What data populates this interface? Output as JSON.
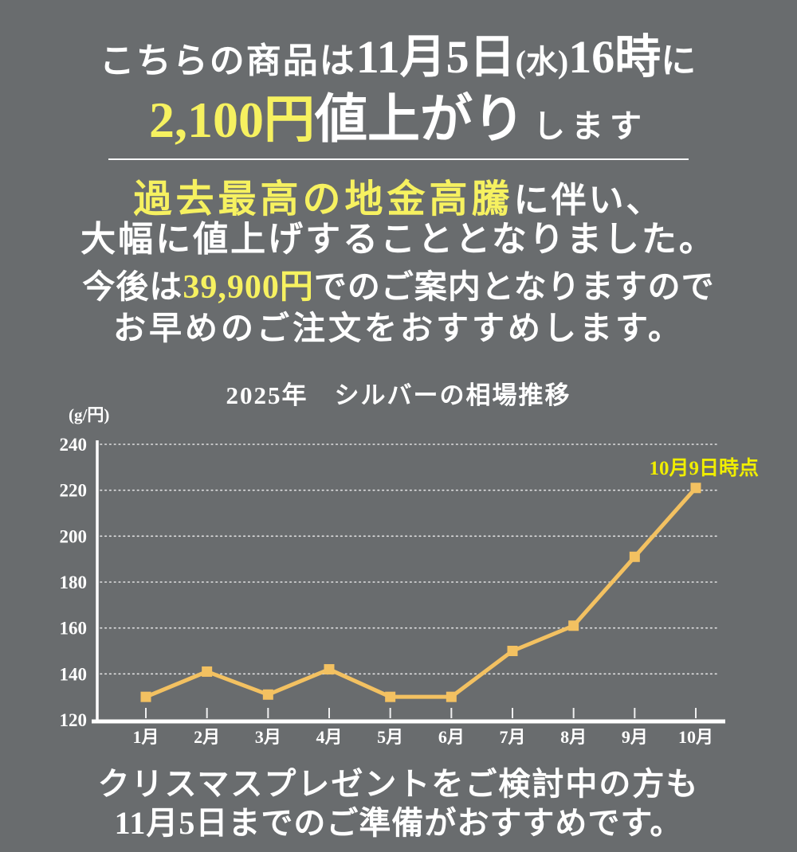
{
  "colors": {
    "background_gray": "#696c6e",
    "text_white": "#ffffff",
    "accent_yellow": "#f6f160",
    "annotation_yellow": "#f0ee00",
    "line_orange": "#f3c161"
  },
  "header": {
    "line1_prefix": "こちらの商品は",
    "line1_date": "11月5日",
    "line1_weekday": "(水)",
    "line1_time": "16時",
    "line1_suffix": "に",
    "line2_price": "2,100円",
    "line2_emph": "値上がり",
    "line2_suffix": "します"
  },
  "message": {
    "line1_em": "過去最高の地金高騰",
    "line1_rest": "に伴い、",
    "line2": "大幅に値上げすることとなりました。",
    "line3_pre": "今後は",
    "line3_em": "39,900円",
    "line3_post": "でのご案内となりますので",
    "line4": "お早めのご注文をおすすめします。"
  },
  "chart_data": {
    "type": "line",
    "title": "2025年　シルバーの相場推移",
    "unit_label": "(g/円)",
    "categories": [
      "1月",
      "2月",
      "3月",
      "4月",
      "5月",
      "6月",
      "7月",
      "8月",
      "9月",
      "10月"
    ],
    "values": [
      130,
      141,
      131,
      142,
      130,
      130,
      150,
      161,
      191,
      221
    ],
    "ylim": [
      120,
      240
    ],
    "yticks": [
      120,
      140,
      160,
      180,
      200,
      220,
      240
    ],
    "annotation": "10月9日時点",
    "line_color": "#f3c161",
    "marker": "square",
    "grid": true,
    "legend": "none"
  },
  "footer": {
    "line1": "クリスマスプレゼントをご検討中の方も",
    "line2": "11月5日までのご準備がおすすめです。"
  }
}
